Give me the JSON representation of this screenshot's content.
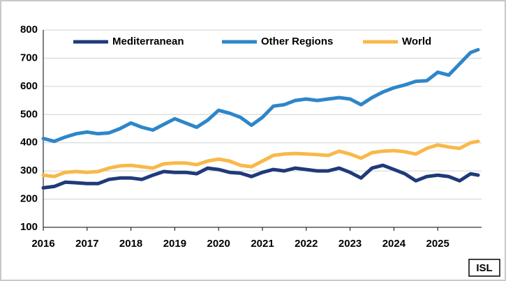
{
  "chart_data": {
    "type": "line",
    "x": [
      2016,
      2016.25,
      2016.5,
      2016.75,
      2017,
      2017.25,
      2017.5,
      2017.75,
      2018,
      2018.25,
      2018.5,
      2018.75,
      2019,
      2019.25,
      2019.5,
      2019.75,
      2020,
      2020.25,
      2020.5,
      2020.75,
      2021,
      2021.25,
      2021.5,
      2021.75,
      2022,
      2022.25,
      2022.5,
      2022.75,
      2023,
      2023.25,
      2023.5,
      2023.75,
      2024,
      2024.25,
      2024.5,
      2024.75,
      2025,
      2025.25,
      2025.5,
      2025.75,
      2025.92
    ],
    "series": [
      {
        "name": "Mediterranean",
        "color": "#1f3a7a",
        "values": [
          240,
          245,
          260,
          258,
          255,
          255,
          270,
          275,
          275,
          270,
          285,
          298,
          295,
          295,
          290,
          310,
          305,
          295,
          292,
          280,
          295,
          305,
          300,
          310,
          305,
          300,
          300,
          310,
          295,
          275,
          310,
          320,
          305,
          290,
          265,
          280,
          285,
          280,
          265,
          290,
          285
        ]
      },
      {
        "name": "Other Regions",
        "color": "#2e86c8",
        "values": [
          415,
          405,
          420,
          432,
          438,
          432,
          435,
          450,
          470,
          455,
          445,
          465,
          485,
          470,
          455,
          480,
          515,
          505,
          490,
          462,
          490,
          530,
          535,
          550,
          555,
          550,
          555,
          560,
          555,
          535,
          560,
          580,
          595,
          605,
          618,
          620,
          650,
          640,
          680,
          720,
          730
        ]
      },
      {
        "name": "World",
        "color": "#f9b84a",
        "values": [
          285,
          280,
          295,
          298,
          295,
          298,
          310,
          318,
          320,
          315,
          310,
          325,
          328,
          328,
          322,
          335,
          342,
          335,
          320,
          315,
          335,
          355,
          360,
          362,
          360,
          358,
          355,
          370,
          360,
          345,
          365,
          370,
          372,
          368,
          360,
          380,
          392,
          385,
          380,
          400,
          405
        ]
      }
    ],
    "xlim": [
      2016,
      2026
    ],
    "xticks": [
      2016,
      2017,
      2018,
      2019,
      2020,
      2021,
      2022,
      2023,
      2024,
      2025
    ],
    "ylim": [
      100,
      800
    ],
    "yticks": [
      100,
      200,
      300,
      400,
      500,
      600,
      700,
      800
    ],
    "grid": true,
    "legend": "top",
    "annotation": "ISL"
  }
}
